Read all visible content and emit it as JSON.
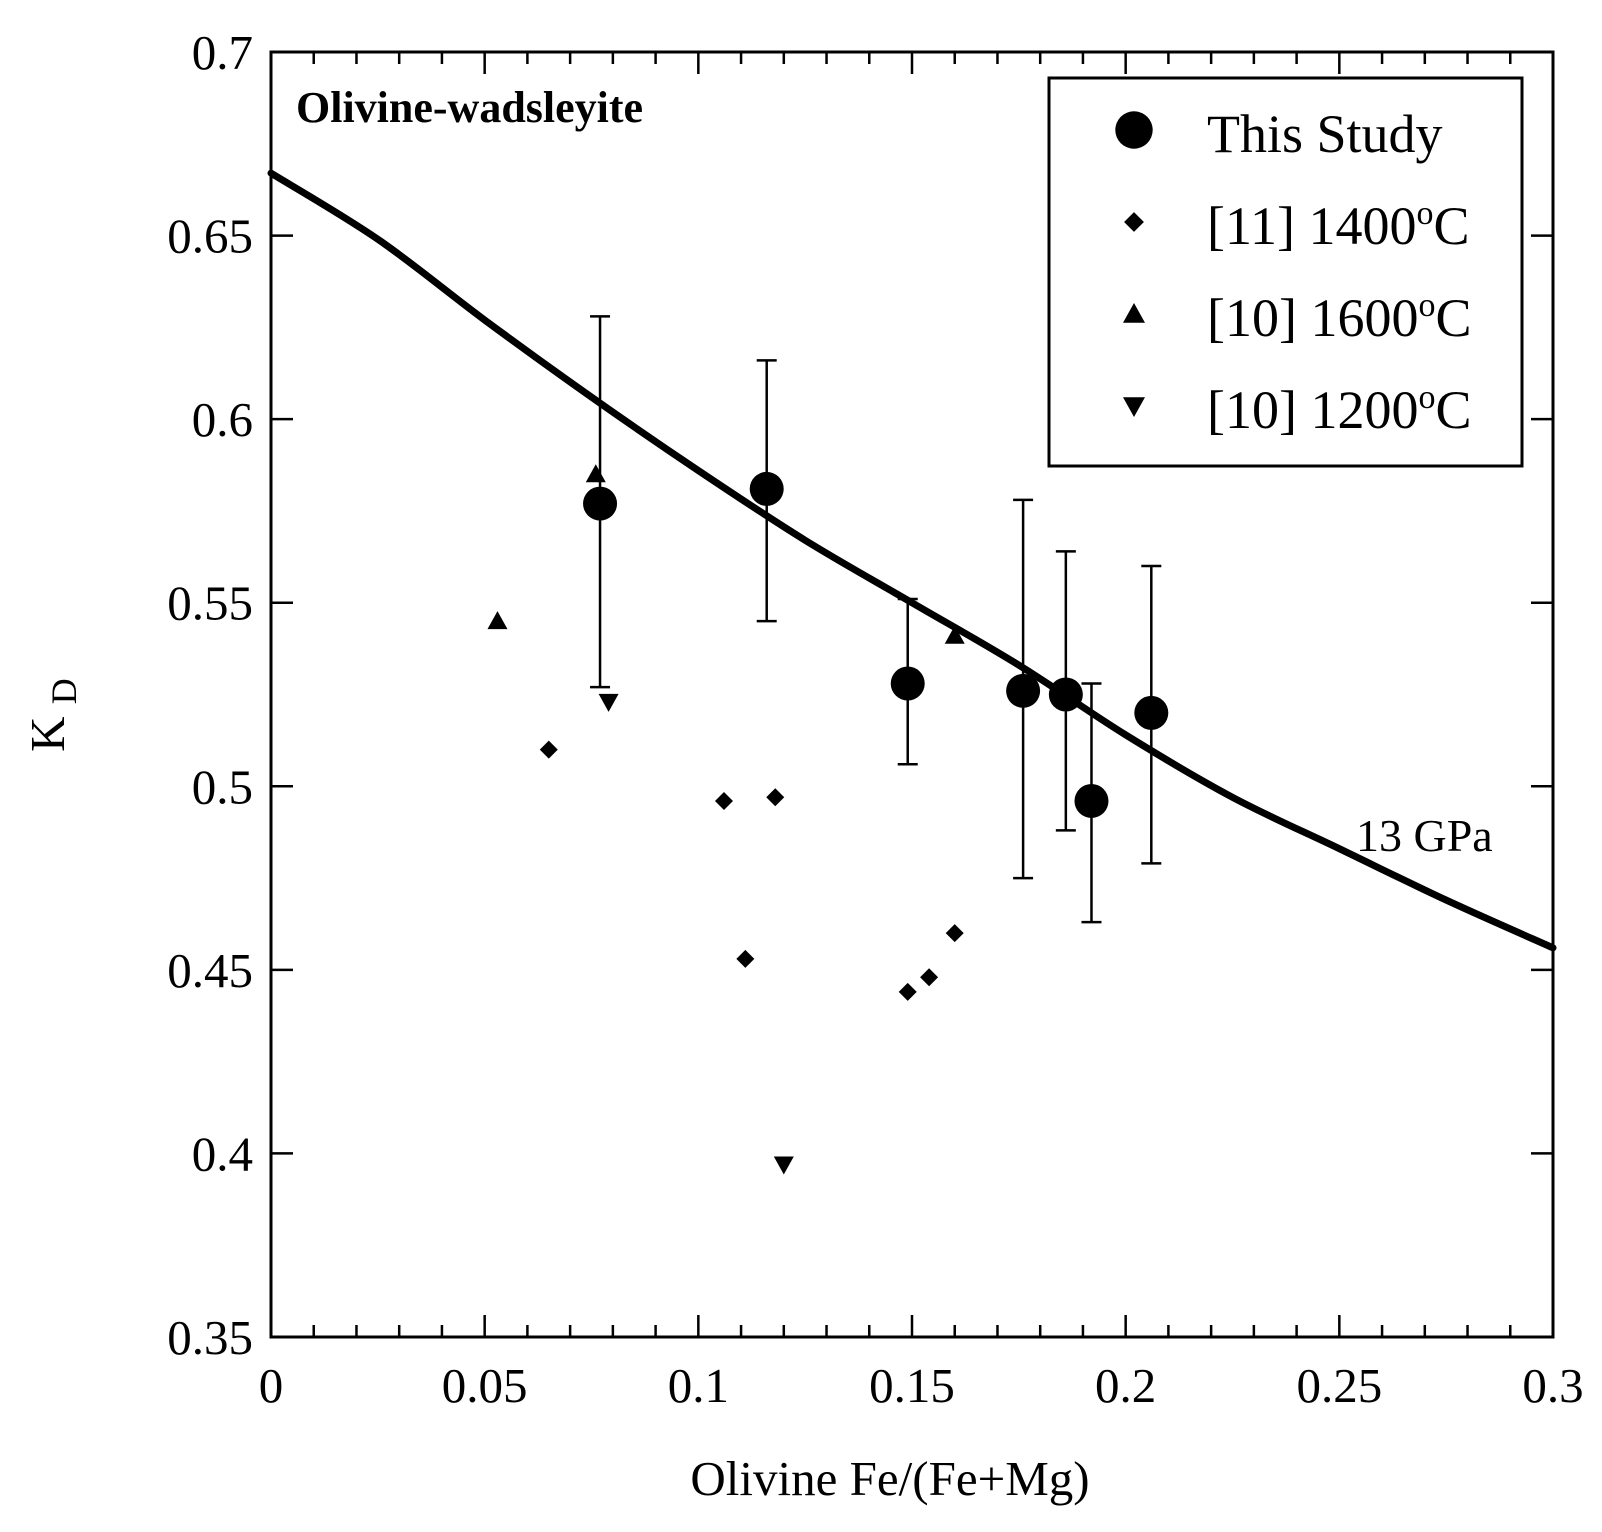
{
  "chart_data": {
    "type": "scatter",
    "title": "Olivine-wadsleyite",
    "xlabel": "Olivine Fe/(Fe+Mg)",
    "ylabel": {
      "main": "K",
      "sub": "D"
    },
    "xlim": [
      0,
      0.3
    ],
    "ylim": [
      0.35,
      0.7
    ],
    "x_ticks": [
      {
        "value": 0,
        "label": "0"
      },
      {
        "value": 0.05,
        "label": "0.05"
      },
      {
        "value": 0.1,
        "label": "0.1"
      },
      {
        "value": 0.15,
        "label": "0.15"
      },
      {
        "value": 0.2,
        "label": "0.2"
      },
      {
        "value": 0.25,
        "label": "0.25"
      },
      {
        "value": 0.3,
        "label": "0.3"
      }
    ],
    "y_ticks": [
      {
        "value": 0.35,
        "label": "0.35"
      },
      {
        "value": 0.4,
        "label": "0.4"
      },
      {
        "value": 0.45,
        "label": "0.45"
      },
      {
        "value": 0.5,
        "label": "0.5"
      },
      {
        "value": 0.55,
        "label": "0.55"
      },
      {
        "value": 0.6,
        "label": "0.6"
      },
      {
        "value": 0.65,
        "label": "0.65"
      },
      {
        "value": 0.7,
        "label": "0.7"
      }
    ],
    "grid": false,
    "legend_position": "top-right",
    "series": [
      {
        "name": "This Study",
        "marker": "circle",
        "points": [
          {
            "x": 0.077,
            "y": 0.577,
            "err_low": 0.527,
            "err_high": 0.628
          },
          {
            "x": 0.116,
            "y": 0.581,
            "err_low": 0.545,
            "err_high": 0.616
          },
          {
            "x": 0.149,
            "y": 0.528,
            "err_low": 0.506,
            "err_high": 0.551
          },
          {
            "x": 0.176,
            "y": 0.526,
            "err_low": 0.475,
            "err_high": 0.578
          },
          {
            "x": 0.186,
            "y": 0.525,
            "err_low": 0.488,
            "err_high": 0.564
          },
          {
            "x": 0.192,
            "y": 0.496,
            "err_low": 0.463,
            "err_high": 0.528
          },
          {
            "x": 0.206,
            "y": 0.52,
            "err_low": 0.479,
            "err_high": 0.56
          }
        ]
      },
      {
        "name": "[11] 1400°C",
        "marker": "diamond",
        "points": [
          {
            "x": 0.065,
            "y": 0.51
          },
          {
            "x": 0.106,
            "y": 0.496
          },
          {
            "x": 0.118,
            "y": 0.497
          },
          {
            "x": 0.111,
            "y": 0.453
          },
          {
            "x": 0.149,
            "y": 0.444
          },
          {
            "x": 0.154,
            "y": 0.448
          },
          {
            "x": 0.16,
            "y": 0.46
          }
        ]
      },
      {
        "name": "[10] 1600°C",
        "marker": "triangle-up",
        "points": [
          {
            "x": 0.053,
            "y": 0.545
          },
          {
            "x": 0.076,
            "y": 0.585
          },
          {
            "x": 0.16,
            "y": 0.541
          }
        ]
      },
      {
        "name": "[10] 1200°C",
        "marker": "triangle-down",
        "points": [
          {
            "x": 0.079,
            "y": 0.523
          },
          {
            "x": 0.12,
            "y": 0.397
          }
        ]
      }
    ],
    "legend": [
      {
        "prefix": "This Study",
        "sup": "",
        "suffix": "",
        "marker": "circle"
      },
      {
        "prefix": "[11] 1400",
        "sup": "o",
        "suffix": "C",
        "marker": "diamond"
      },
      {
        "prefix": "[10] 1600",
        "sup": "o",
        "suffix": "C",
        "marker": "triangle-up"
      },
      {
        "prefix": "[10] 1200",
        "sup": "o",
        "suffix": "C",
        "marker": "triangle-down"
      }
    ],
    "curve": {
      "label": "13 GPa",
      "points": [
        {
          "x": 0.0,
          "y": 0.667
        },
        {
          "x": 0.025,
          "y": 0.649
        },
        {
          "x": 0.05,
          "y": 0.627
        },
        {
          "x": 0.075,
          "y": 0.606
        },
        {
          "x": 0.1,
          "y": 0.586
        },
        {
          "x": 0.125,
          "y": 0.567
        },
        {
          "x": 0.15,
          "y": 0.55
        },
        {
          "x": 0.175,
          "y": 0.533
        },
        {
          "x": 0.2,
          "y": 0.514
        },
        {
          "x": 0.225,
          "y": 0.497
        },
        {
          "x": 0.25,
          "y": 0.483
        },
        {
          "x": 0.275,
          "y": 0.469
        },
        {
          "x": 0.3,
          "y": 0.456
        }
      ]
    }
  }
}
